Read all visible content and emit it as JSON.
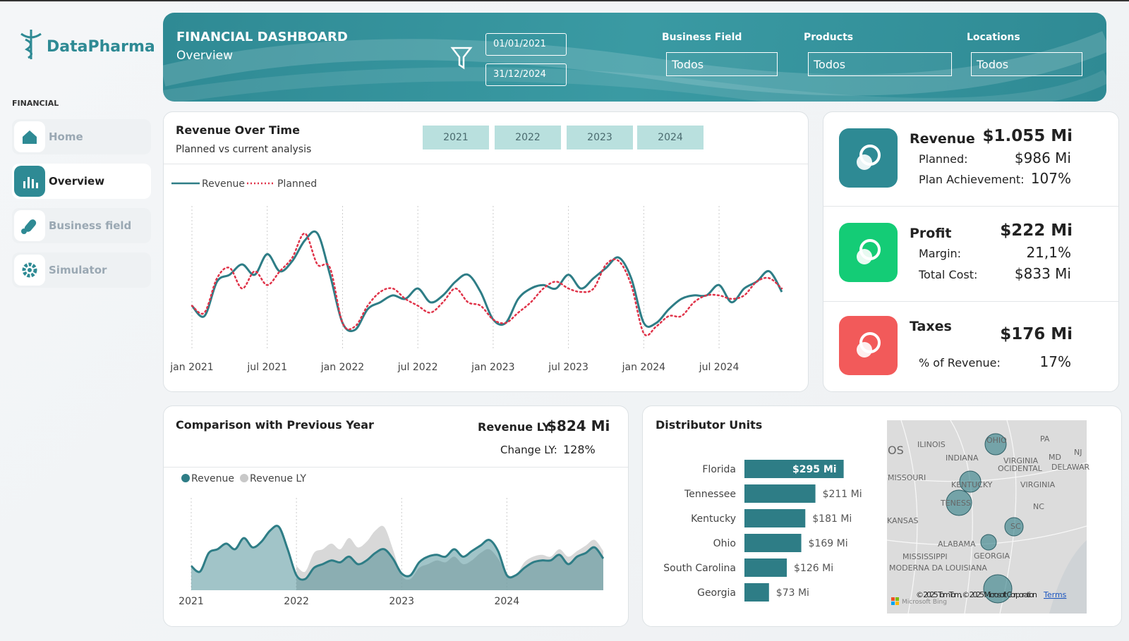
{
  "sidebar": {
    "brand": "DataPharma",
    "section": "FINANCIAL",
    "nav": [
      "Home",
      "Overview",
      "Business field",
      "Simulator"
    ]
  },
  "header": {
    "title": "FINANCIAL DASHBOARD",
    "subtitle": "Overview",
    "date_from": "01/01/2021",
    "date_to": "31/12/2024",
    "filters": [
      {
        "label": "Business Field",
        "value": "Todos"
      },
      {
        "label": "Products",
        "value": "Todos"
      },
      {
        "label": "Locations",
        "value": "Todos"
      }
    ]
  },
  "revenue_chart": {
    "type": "line",
    "title": "Revenue Over Time",
    "subtitle": "Planned vs current analysis",
    "year_buttons": [
      "2021",
      "2022",
      "2023",
      "2024"
    ],
    "x": [
      "2021-01",
      "2021-02",
      "2021-03",
      "2021-04",
      "2021-05",
      "2021-06",
      "2021-07",
      "2021-08",
      "2021-09",
      "2021-10",
      "2021-11",
      "2021-12",
      "2022-01",
      "2022-02",
      "2022-03",
      "2022-04",
      "2022-05",
      "2022-06",
      "2022-07",
      "2022-08",
      "2022-09",
      "2022-10",
      "2022-11",
      "2022-12",
      "2023-01",
      "2023-02",
      "2023-03",
      "2023-04",
      "2023-05",
      "2023-06",
      "2023-07",
      "2023-08",
      "2023-09",
      "2023-10",
      "2023-11",
      "2023-12",
      "2024-01",
      "2024-02",
      "2024-03",
      "2024-04",
      "2024-05",
      "2024-06",
      "2024-07",
      "2024-08",
      "2024-09",
      "2024-10",
      "2024-11",
      "2024-12"
    ],
    "xticks": [
      {
        "value": "2021-01",
        "label": "jan 2021"
      },
      {
        "value": "2021-07",
        "label": "jul 2021"
      },
      {
        "value": "2022-01",
        "label": "jan 2022"
      },
      {
        "value": "2022-07",
        "label": "jul 2022"
      },
      {
        "value": "2023-01",
        "label": "jan 2023"
      },
      {
        "value": "2023-07",
        "label": "jul 2023"
      },
      {
        "value": "2024-01",
        "label": "jan 2024"
      },
      {
        "value": "2024-07",
        "label": "jul 2024"
      }
    ],
    "ylim": [
      0,
      42
    ],
    "series": [
      {
        "name": "Revenue",
        "color": "#2e7d86",
        "style": "solid",
        "values": [
          13,
          10,
          20,
          22,
          25,
          22,
          28,
          23,
          26,
          32,
          34,
          22,
          8,
          6,
          12,
          14,
          16,
          15,
          18,
          14,
          16,
          20,
          22,
          17,
          9,
          8,
          15,
          18,
          19,
          18,
          22,
          18,
          21,
          24,
          27,
          21,
          8,
          8,
          12,
          15,
          16,
          16,
          19,
          14,
          18,
          20,
          23,
          17
        ]
      },
      {
        "name": "Planned",
        "color": "#e0344a",
        "style": "dotted",
        "values": [
          13,
          11,
          21,
          24,
          18,
          23,
          19,
          23,
          27,
          34,
          25,
          24,
          8,
          7,
          13,
          17,
          18,
          15,
          13,
          11,
          14,
          18,
          14,
          13,
          9,
          8,
          11,
          14,
          18,
          20,
          18,
          17,
          18,
          25,
          26,
          19,
          5,
          7,
          10,
          10,
          14,
          16,
          16,
          15,
          16,
          20,
          21,
          18
        ]
      }
    ]
  },
  "kpis": [
    {
      "title": "Revenue",
      "value": "$1.055 Mi",
      "color": "#2e8a94",
      "rows": [
        {
          "label": "Planned:",
          "value": "$986 Mi"
        },
        {
          "label": "Plan Achievement:",
          "value": "107%"
        }
      ]
    },
    {
      "title": "Profit",
      "value": "$222 Mi",
      "color": "#14cc76",
      "rows": [
        {
          "label": "Margin:",
          "value": "21,1%"
        },
        {
          "label": "Total Cost:",
          "value": "$833 Mi"
        }
      ]
    },
    {
      "title": "Taxes",
      "value": "$176 Mi",
      "color": "#f25a5a",
      "rows": [
        {
          "label": "% of Revenue:",
          "value": "17%"
        }
      ]
    }
  ],
  "comparison_chart": {
    "type": "area",
    "title": "Comparison with Previous Year",
    "kpi_label": "Revenue LY",
    "kpi_value": "$824 Mi",
    "change_label": "Change LY:",
    "change_value": "128%",
    "x": [
      "2021-01",
      "2021-02",
      "2021-03",
      "2021-04",
      "2021-05",
      "2021-06",
      "2021-07",
      "2021-08",
      "2021-09",
      "2021-10",
      "2021-11",
      "2021-12",
      "2022-01",
      "2022-02",
      "2022-03",
      "2022-04",
      "2022-05",
      "2022-06",
      "2022-07",
      "2022-08",
      "2022-09",
      "2022-10",
      "2022-11",
      "2022-12",
      "2023-01",
      "2023-02",
      "2023-03",
      "2023-04",
      "2023-05",
      "2023-06",
      "2023-07",
      "2023-08",
      "2023-09",
      "2023-10",
      "2023-11",
      "2023-12",
      "2024-01",
      "2024-02",
      "2024-03",
      "2024-04",
      "2024-05",
      "2024-06",
      "2024-07",
      "2024-08",
      "2024-09",
      "2024-10",
      "2024-11",
      "2024-12"
    ],
    "xticks": [
      {
        "value": "2021-01",
        "label": "2021"
      },
      {
        "value": "2022-01",
        "label": "2022"
      },
      {
        "value": "2023-01",
        "label": "2023"
      },
      {
        "value": "2024-01",
        "label": "2024"
      }
    ],
    "ylim": [
      0,
      42
    ],
    "series": [
      {
        "name": "Revenue LY",
        "color": "#c8c8c8",
        "values": [
          null,
          null,
          null,
          null,
          null,
          null,
          null,
          null,
          null,
          null,
          null,
          null,
          13,
          10,
          20,
          22,
          25,
          22,
          28,
          23,
          26,
          32,
          34,
          22,
          8,
          6,
          12,
          14,
          16,
          15,
          18,
          14,
          16,
          20,
          22,
          17,
          9,
          8,
          15,
          18,
          19,
          18,
          22,
          18,
          21,
          24,
          27,
          21
        ]
      },
      {
        "name": "Revenue",
        "color": "#2e7d86",
        "values": [
          13,
          10,
          20,
          22,
          25,
          22,
          28,
          23,
          26,
          32,
          34,
          22,
          8,
          6,
          12,
          14,
          16,
          15,
          18,
          14,
          16,
          20,
          22,
          17,
          9,
          8,
          15,
          18,
          19,
          18,
          22,
          18,
          21,
          24,
          27,
          21,
          8,
          8,
          12,
          15,
          16,
          16,
          19,
          14,
          18,
          20,
          23,
          17
        ]
      }
    ]
  },
  "distributor_chart": {
    "type": "bar",
    "title": "Distributor Units",
    "color": "#2e7d86",
    "categories": [
      "Florida",
      "Tennessee",
      "Kentucky",
      "Ohio",
      "South Carolina",
      "Georgia"
    ],
    "values": [
      295,
      211,
      181,
      169,
      126,
      73
    ],
    "value_labels": [
      "$295 Mi",
      "$211 Mi",
      "$181 Mi",
      "$169 Mi",
      "$126 Mi",
      "$73 Mi"
    ],
    "xlim": [
      0,
      300
    ]
  },
  "map": {
    "labels": [
      "OS",
      "ILINOIS",
      "INDIANA",
      "OHIO",
      "PA",
      "MD",
      "NJ",
      "VIRGINIA",
      "OCIDENTAL",
      "DELAWAR",
      "MISSOURI",
      "KENTUCKY",
      "VIRGINIA",
      "TENESS",
      "NC",
      "KANSAS",
      "SC",
      "ALABAMA",
      "MISSISSIPPI",
      "GEORGIA",
      "MODERNA DA LOUISIANA"
    ],
    "attribution": "© 2025 TomTom, © 2025 Microsoft Corporation",
    "terms": "Terms",
    "provider": "Microsoft Bing"
  }
}
